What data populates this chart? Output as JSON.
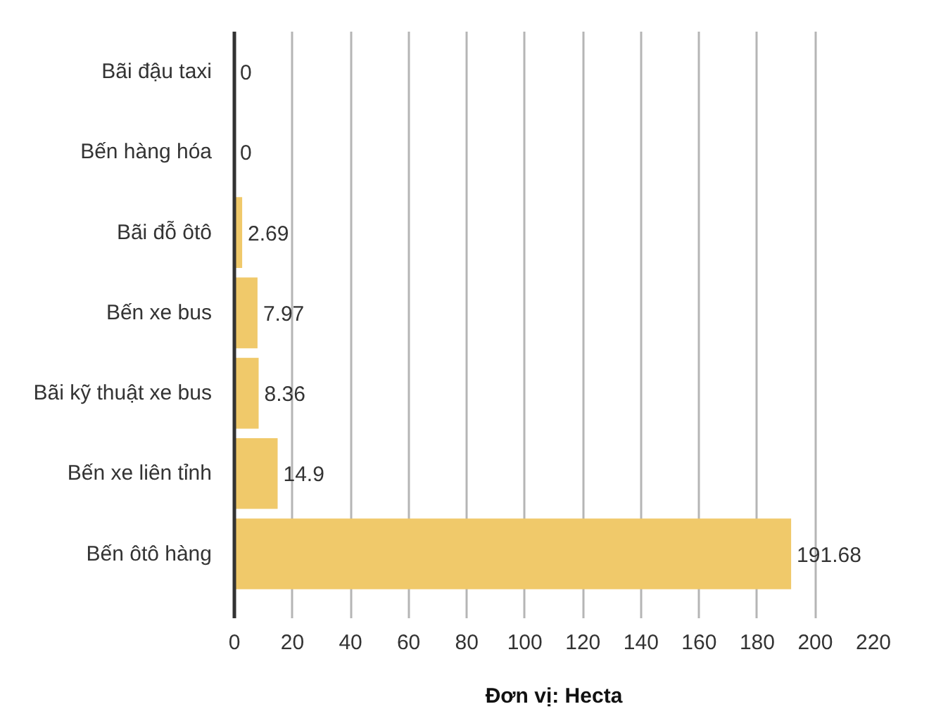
{
  "chart_data": {
    "type": "bar",
    "orientation": "horizontal",
    "categories": [
      "Bãi đậu taxi",
      "Bến hàng hóa",
      "Bãi đỗ ôtô",
      "Bến xe bus",
      "Bãi kỹ thuật xe bus",
      "Bến xe liên tỉnh",
      "Bến ôtô hàng"
    ],
    "values": [
      0,
      0,
      2.69,
      7.97,
      8.36,
      14.9,
      191.68
    ],
    "color": "#f0c96a",
    "xlim": [
      0,
      220
    ],
    "xticks": [
      0,
      20,
      40,
      60,
      80,
      100,
      120,
      140,
      160,
      180,
      200,
      220
    ],
    "xlabel": "Đơn vị: Hecta",
    "data_labels": true,
    "grid": "x"
  }
}
